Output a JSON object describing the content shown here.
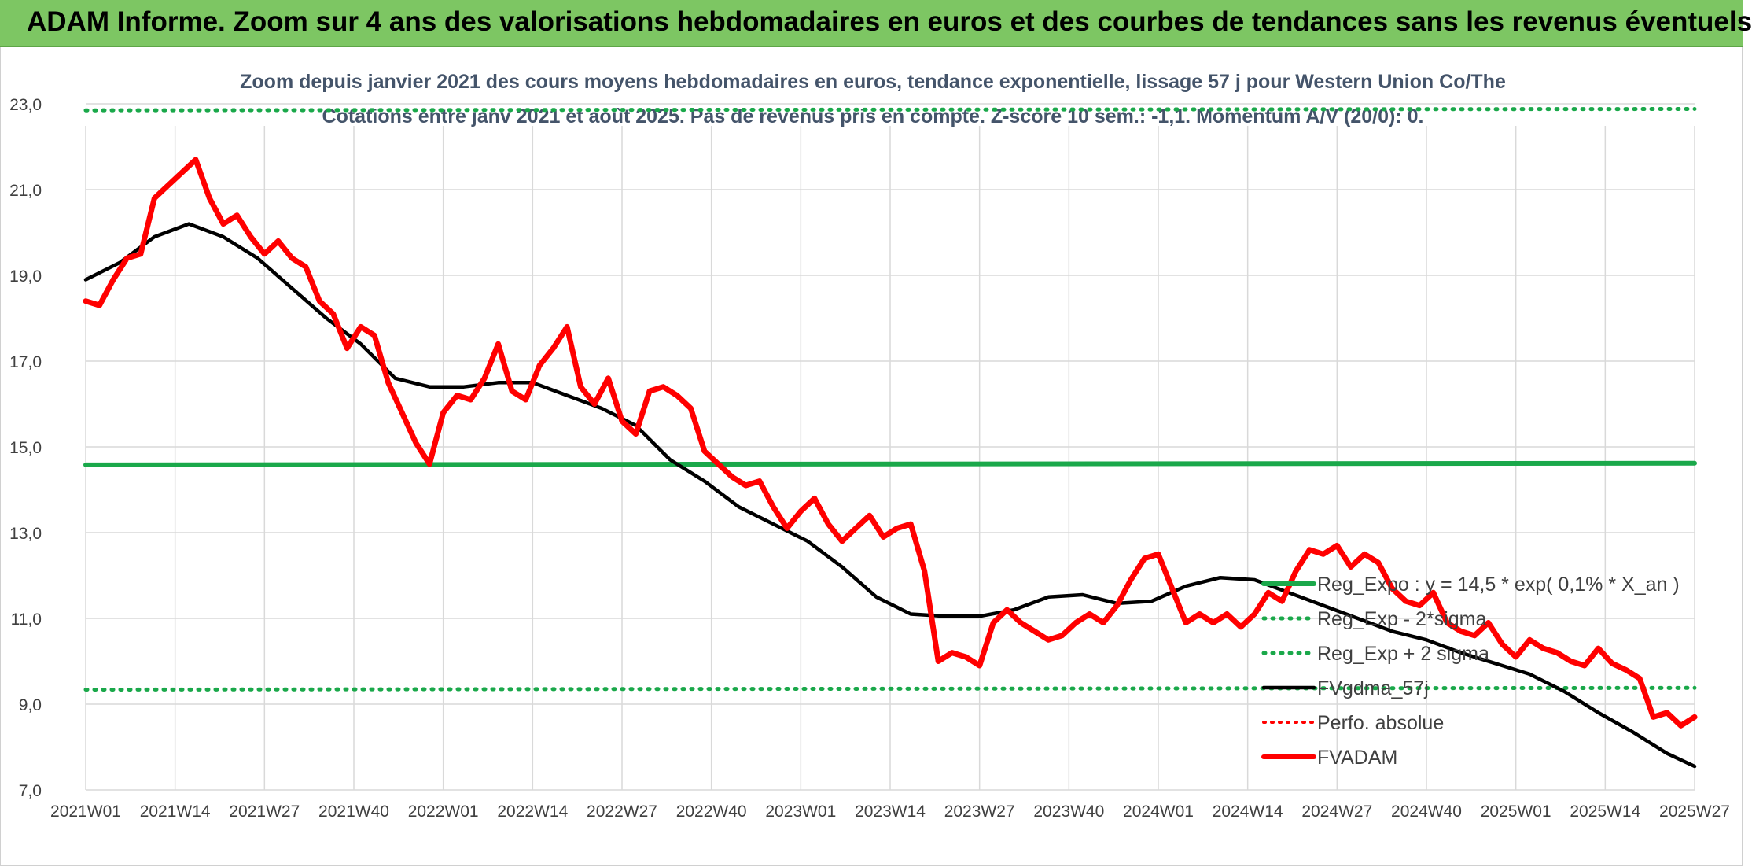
{
  "banner": {
    "title": "ADAM Informe. Zoom sur 4 ans des valorisations hebdomadaires en euros et des courbes de tendances sans les revenus éventuels"
  },
  "colors": {
    "banner": "#7dc663",
    "price": "#ff0000",
    "moving_average": "#000000",
    "regression": "#1aa84a",
    "sigma_bands": "#1aa84a",
    "grid": "#d9d9d9",
    "title_text": "#44546a"
  },
  "chart_data": {
    "type": "line",
    "title_line1": "Zoom depuis janvier 2021 des cours moyens hebdomadaires en euros, tendance exponentielle, lissage 57 j pour Western Union Co/The",
    "title_line2": "Cotations entre janv 2021 et août 2025. Pas de revenus pris en compte. Z-score 10 sem.: -1,1. Momentum A/V (20/0): 0.",
    "xlabel": "",
    "ylabel": "",
    "ylim": [
      7.0,
      23.0
    ],
    "ytick_labels": [
      "7,0",
      "9,0",
      "11,0",
      "13,0",
      "15,0",
      "17,0",
      "19,0",
      "21,0",
      "23,0"
    ],
    "x_categories": [
      "2021W01",
      "2021W14",
      "2021W27",
      "2021W40",
      "2022W01",
      "2022W14",
      "2022W27",
      "2022W40",
      "2023W01",
      "2023W14",
      "2023W27",
      "2023W40",
      "2024W01",
      "2024W14",
      "2024W27",
      "2024W40",
      "2025W01",
      "2025W14",
      "2025W27"
    ],
    "grid": true,
    "legend_position": "bottom-right",
    "series": [
      {
        "name": "Reg_Expo : y = 14,5 * exp( 0,1% *  X_an )",
        "style": "solid-thick",
        "x": [
          0,
          234
        ],
        "values": [
          14.58,
          14.62
        ]
      },
      {
        "name": "Reg_Exp - 2*sigma",
        "style": "dotted",
        "x": [
          0,
          234
        ],
        "values": [
          9.34,
          9.38
        ]
      },
      {
        "name": "Reg_Exp + 2 sigma",
        "style": "dotted",
        "x": [
          0,
          234
        ],
        "values": [
          22.85,
          22.88
        ]
      },
      {
        "name": "FVgdma_57j",
        "style": "solid",
        "x": [
          0,
          5,
          10,
          15,
          20,
          25,
          30,
          35,
          40,
          45,
          50,
          55,
          60,
          65,
          70,
          75,
          80,
          85,
          90,
          95,
          100,
          105,
          110,
          115,
          120,
          125,
          130,
          135,
          140,
          145,
          150,
          155,
          160,
          165,
          170,
          175,
          180,
          185,
          190,
          195,
          200,
          205,
          210,
          215,
          220,
          225,
          230,
          234
        ],
        "values": [
          18.9,
          19.3,
          19.9,
          20.2,
          19.9,
          19.4,
          18.7,
          18.0,
          17.4,
          16.6,
          16.4,
          16.4,
          16.5,
          16.5,
          16.2,
          15.9,
          15.5,
          14.7,
          14.2,
          13.6,
          13.2,
          12.8,
          12.2,
          11.5,
          11.1,
          11.05,
          11.05,
          11.2,
          11.5,
          11.55,
          11.35,
          11.4,
          11.75,
          11.95,
          11.9,
          11.6,
          11.3,
          11.0,
          10.7,
          10.5,
          10.2,
          9.95,
          9.7,
          9.3,
          8.8,
          8.35,
          7.85,
          7.55
        ]
      },
      {
        "name": "Perfo. absolue",
        "style": "dotted",
        "x": [],
        "values": []
      },
      {
        "name": "FVADAM",
        "style": "solid-thick",
        "x": [
          0,
          2,
          4,
          6,
          8,
          10,
          12,
          14,
          16,
          18,
          20,
          22,
          24,
          26,
          28,
          30,
          32,
          34,
          36,
          38,
          40,
          42,
          44,
          46,
          48,
          50,
          52,
          54,
          56,
          58,
          60,
          62,
          64,
          66,
          68,
          70,
          72,
          74,
          76,
          78,
          80,
          82,
          84,
          86,
          88,
          90,
          92,
          94,
          96,
          98,
          100,
          102,
          104,
          106,
          108,
          110,
          112,
          114,
          116,
          118,
          120,
          122,
          124,
          126,
          128,
          130,
          132,
          134,
          136,
          138,
          140,
          142,
          144,
          146,
          148,
          150,
          152,
          154,
          156,
          158,
          160,
          162,
          164,
          166,
          168,
          170,
          172,
          174,
          176,
          178,
          180,
          182,
          184,
          186,
          188,
          190,
          192,
          194,
          196,
          198,
          200,
          202,
          204,
          206,
          208,
          210,
          212,
          214,
          216,
          218,
          220,
          222,
          224,
          226,
          228,
          230,
          232,
          234
        ],
        "values": [
          18.4,
          18.3,
          18.9,
          19.4,
          19.5,
          20.8,
          21.1,
          21.4,
          21.7,
          20.8,
          20.2,
          20.4,
          19.9,
          19.5,
          19.8,
          19.4,
          19.2,
          18.4,
          18.1,
          17.3,
          17.8,
          17.6,
          16.5,
          15.8,
          15.1,
          14.6,
          15.8,
          16.2,
          16.1,
          16.6,
          17.4,
          16.3,
          16.1,
          16.9,
          17.3,
          17.8,
          16.4,
          16.0,
          16.6,
          15.6,
          15.3,
          16.3,
          16.4,
          16.2,
          15.9,
          14.9,
          14.6,
          14.3,
          14.1,
          14.2,
          13.6,
          13.1,
          13.5,
          13.8,
          13.2,
          12.8,
          13.1,
          13.4,
          12.9,
          13.1,
          13.2,
          12.1,
          10.0,
          10.2,
          10.1,
          9.9,
          10.9,
          11.2,
          10.9,
          10.7,
          10.5,
          10.6,
          10.9,
          11.1,
          10.9,
          11.3,
          11.9,
          12.4,
          12.5,
          11.7,
          10.9,
          11.1,
          10.9,
          11.1,
          10.8,
          11.1,
          11.6,
          11.4,
          12.1,
          12.6,
          12.5,
          12.7,
          12.2,
          12.5,
          12.3,
          11.7,
          11.4,
          11.3,
          11.6,
          10.9,
          10.7,
          10.6,
          10.9,
          10.4,
          10.1,
          10.5,
          10.3,
          10.2,
          10.0,
          9.9,
          10.3,
          9.95,
          9.8,
          9.6,
          8.7,
          8.8,
          8.5,
          8.7
        ]
      }
    ]
  }
}
